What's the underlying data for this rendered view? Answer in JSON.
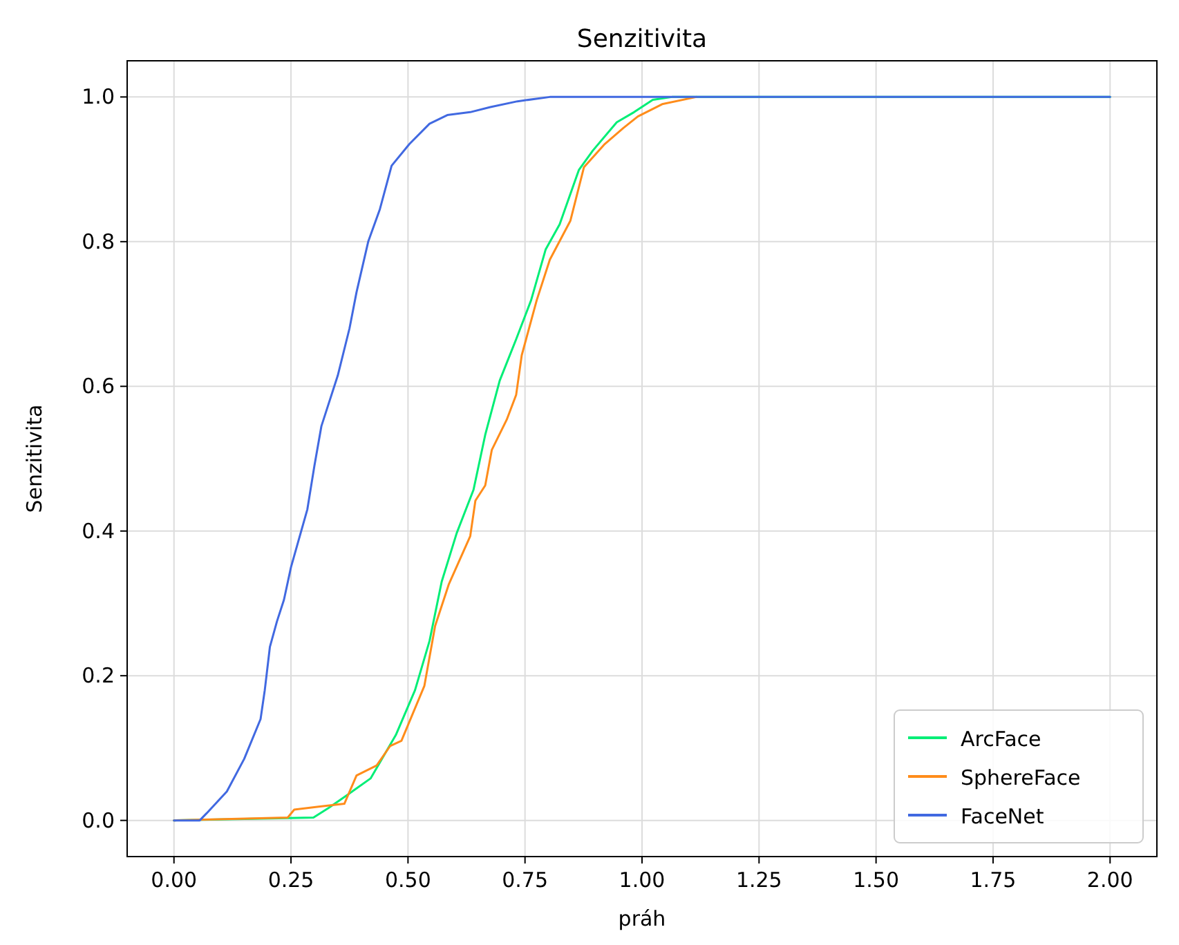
{
  "chart_data": {
    "type": "line",
    "title": "Senzitivita",
    "xlabel": "práh",
    "ylabel": "Senzitivita",
    "xlim": [
      -0.1,
      2.1
    ],
    "ylim": [
      -0.05,
      1.05
    ],
    "xticks": [
      {
        "value": 0,
        "label": "0.00"
      },
      {
        "value": 0.25,
        "label": "0.25"
      },
      {
        "value": 0.5,
        "label": "0.50"
      },
      {
        "value": 0.75,
        "label": "0.75"
      },
      {
        "value": 1,
        "label": "1.00"
      },
      {
        "value": 1.25,
        "label": "1.25"
      },
      {
        "value": 1.5,
        "label": "1.50"
      },
      {
        "value": 1.75,
        "label": "1.75"
      },
      {
        "value": 2,
        "label": "2.00"
      }
    ],
    "yticks": [
      {
        "value": 0,
        "label": "0.0"
      },
      {
        "value": 0.2,
        "label": "0.2"
      },
      {
        "value": 0.4,
        "label": "0.4"
      },
      {
        "value": 0.6,
        "label": "0.6"
      },
      {
        "value": 0.8,
        "label": "0.8"
      },
      {
        "value": 1,
        "label": "1.0"
      }
    ],
    "grid": true,
    "legend": "bottom right",
    "marker": "none",
    "line_style": "solid",
    "series": [
      {
        "name": "ArcFace",
        "color": "#00ee76",
        "x": [
          0,
          0.298,
          0.33,
          0.37,
          0.42,
          0.474,
          0.515,
          0.546,
          0.572,
          0.604,
          0.64,
          0.665,
          0.696,
          0.731,
          0.763,
          0.794,
          0.824,
          0.865,
          0.895,
          0.946,
          0.983,
          1.023,
          1.064,
          2.0
        ],
        "values": [
          0,
          0.004,
          0.017,
          0.035,
          0.058,
          0.118,
          0.18,
          0.248,
          0.33,
          0.397,
          0.457,
          0.533,
          0.608,
          0.665,
          0.719,
          0.789,
          0.824,
          0.899,
          0.926,
          0.965,
          0.979,
          0.996,
          1.0,
          1.0
        ]
      },
      {
        "name": "SphereFace",
        "color": "#ff8c1a",
        "x": [
          0,
          0.243,
          0.257,
          0.309,
          0.364,
          0.39,
          0.433,
          0.462,
          0.486,
          0.535,
          0.558,
          0.587,
          0.633,
          0.644,
          0.665,
          0.679,
          0.711,
          0.731,
          0.743,
          0.775,
          0.803,
          0.847,
          0.876,
          0.919,
          0.96,
          0.991,
          1.043,
          1.116
        ],
        "values": [
          0,
          0.004,
          0.015,
          0.019,
          0.023,
          0.062,
          0.076,
          0.103,
          0.11,
          0.186,
          0.269,
          0.326,
          0.393,
          0.442,
          0.463,
          0.512,
          0.554,
          0.588,
          0.643,
          0.719,
          0.775,
          0.829,
          0.903,
          0.934,
          0.957,
          0.973,
          0.99,
          1.0
        ]
      },
      {
        "name": "FaceNet",
        "color": "#4169e1",
        "x": [
          0,
          0.055,
          0.07,
          0.113,
          0.15,
          0.185,
          0.194,
          0.205,
          0.22,
          0.235,
          0.25,
          0.285,
          0.3,
          0.315,
          0.35,
          0.375,
          0.39,
          0.415,
          0.44,
          0.465,
          0.503,
          0.546,
          0.584,
          0.633,
          0.676,
          0.734,
          0.803,
          2.0
        ],
        "values": [
          0,
          0,
          0.01,
          0.04,
          0.085,
          0.14,
          0.18,
          0.24,
          0.275,
          0.305,
          0.35,
          0.43,
          0.49,
          0.545,
          0.615,
          0.68,
          0.73,
          0.8,
          0.845,
          0.905,
          0.935,
          0.963,
          0.975,
          0.979,
          0.986,
          0.994,
          1.0,
          1.0
        ]
      }
    ]
  }
}
